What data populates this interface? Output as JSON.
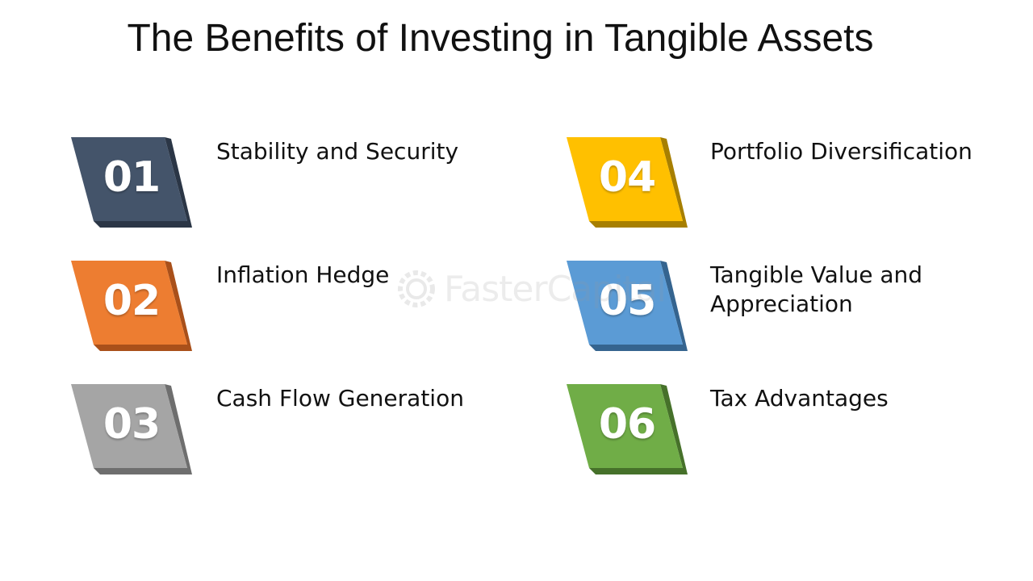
{
  "title": "The Benefits of Investing in Tangible Assets",
  "items": [
    {
      "number": "01",
      "label": "Stability and Security",
      "color": "#44546A",
      "shadow": "#2B3646"
    },
    {
      "number": "02",
      "label": "Inflation Hedge",
      "color": "#ED7D31",
      "shadow": "#A9501A"
    },
    {
      "number": "03",
      "label": "Cash Flow Generation",
      "color": "#A5A5A5",
      "shadow": "#6E6E6E"
    },
    {
      "number": "04",
      "label": "Portfolio Diversification",
      "color": "#FFC000",
      "shadow": "#A77F00"
    },
    {
      "number": "05",
      "label": "Tangible Value and Appreciation",
      "color": "#5B9BD5",
      "shadow": "#35648F"
    },
    {
      "number": "06",
      "label": "Tax Advantages",
      "color": "#70AD47",
      "shadow": "#46712A"
    }
  ],
  "watermark": {
    "text": "FasterCapital",
    "icon": "gear-icon"
  }
}
